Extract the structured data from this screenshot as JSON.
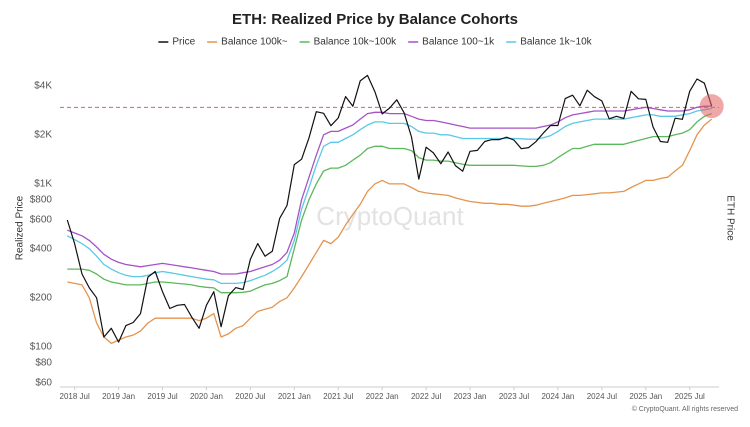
{
  "chart_data": {
    "type": "line",
    "title": "ETH: Realized Price by Balance Cohorts",
    "y_label": "Realized Price",
    "y2_label": "ETH Price",
    "watermark": "CryptoQuant",
    "footer": "© CryptoQuant. All rights reserved",
    "log_scale": true,
    "grid": false,
    "legend": "top",
    "xlim": [
      "2018-05",
      "2025-11"
    ],
    "ylim": [
      60,
      5000
    ],
    "xticks": [
      {
        "value": "2018-07",
        "label": "2018 Jul"
      },
      {
        "value": "2019-01",
        "label": "2019 Jan"
      },
      {
        "value": "2019-07",
        "label": "2019 Jul"
      },
      {
        "value": "2020-01",
        "label": "2020 Jan"
      },
      {
        "value": "2020-07",
        "label": "2020 Jul"
      },
      {
        "value": "2021-01",
        "label": "2021 Jan"
      },
      {
        "value": "2021-07",
        "label": "2021 Jul"
      },
      {
        "value": "2022-01",
        "label": "2022 Jan"
      },
      {
        "value": "2022-07",
        "label": "2022 Jul"
      },
      {
        "value": "2023-01",
        "label": "2023 Jan"
      },
      {
        "value": "2023-07",
        "label": "2023 Jul"
      },
      {
        "value": "2024-01",
        "label": "2024 Jan"
      },
      {
        "value": "2024-07",
        "label": "2024 Jul"
      },
      {
        "value": "2025-01",
        "label": "2025 Jan"
      },
      {
        "value": "2025-07",
        "label": "2025 Jul"
      }
    ],
    "yticks": [
      {
        "value": 60,
        "label": "$60"
      },
      {
        "value": 80,
        "label": "$80"
      },
      {
        "value": 100,
        "label": "$100"
      },
      {
        "value": 200,
        "label": "$200"
      },
      {
        "value": 400,
        "label": "$400"
      },
      {
        "value": 600,
        "label": "$600"
      },
      {
        "value": 800,
        "label": "$800"
      },
      {
        "value": 1000,
        "label": "$1K"
      },
      {
        "value": 2000,
        "label": "$2K"
      },
      {
        "value": 4000,
        "label": "$4K"
      }
    ],
    "reference_line": {
      "value": 2950,
      "color": "#e06060"
    },
    "highlight_last": true,
    "x": [
      "2018-06",
      "2018-07",
      "2018-08",
      "2018-09",
      "2018-10",
      "2018-11",
      "2018-12",
      "2019-01",
      "2019-02",
      "2019-03",
      "2019-04",
      "2019-05",
      "2019-06",
      "2019-07",
      "2019-08",
      "2019-09",
      "2019-10",
      "2019-11",
      "2019-12",
      "2020-01",
      "2020-02",
      "2020-03",
      "2020-04",
      "2020-05",
      "2020-06",
      "2020-07",
      "2020-08",
      "2020-09",
      "2020-10",
      "2020-11",
      "2020-12",
      "2021-01",
      "2021-02",
      "2021-03",
      "2021-04",
      "2021-05",
      "2021-06",
      "2021-07",
      "2021-08",
      "2021-09",
      "2021-10",
      "2021-11",
      "2021-12",
      "2022-01",
      "2022-02",
      "2022-03",
      "2022-04",
      "2022-05",
      "2022-06",
      "2022-07",
      "2022-08",
      "2022-09",
      "2022-10",
      "2022-11",
      "2022-12",
      "2023-01",
      "2023-02",
      "2023-03",
      "2023-04",
      "2023-05",
      "2023-06",
      "2023-07",
      "2023-08",
      "2023-09",
      "2023-10",
      "2023-11",
      "2023-12",
      "2024-01",
      "2024-02",
      "2024-03",
      "2024-04",
      "2024-05",
      "2024-06",
      "2024-07",
      "2024-08",
      "2024-09",
      "2024-10",
      "2024-11",
      "2024-12",
      "2025-01",
      "2025-02",
      "2025-03",
      "2025-04",
      "2025-05",
      "2025-06",
      "2025-07",
      "2025-08",
      "2025-09",
      "2025-10"
    ],
    "series": [
      {
        "name": "Price",
        "color": "#111111",
        "values": [
          600,
          430,
          280,
          230,
          200,
          115,
          130,
          107,
          135,
          141,
          160,
          268,
          290,
          218,
          172,
          180,
          182,
          152,
          130,
          180,
          218,
          133,
          206,
          231,
          225,
          345,
          430,
          360,
          386,
          615,
          737,
          1314,
          1418,
          1918,
          2773,
          2710,
          2275,
          2536,
          3433,
          3000,
          4288,
          4630,
          3680,
          2688,
          2920,
          3280,
          2730,
          1940,
          1070,
          1680,
          1550,
          1330,
          1570,
          1295,
          1196,
          1585,
          1605,
          1820,
          1870,
          1870,
          1934,
          1856,
          1645,
          1671,
          1815,
          2050,
          2282,
          2283,
          3340,
          3500,
          3015,
          3760,
          3430,
          3230,
          2510,
          2600,
          2520,
          3700,
          3330,
          3300,
          2230,
          1820,
          1800,
          2530,
          2490,
          3700,
          4400,
          4150,
          3000
        ]
      },
      {
        "name": "Balance 100k~",
        "color": "#e3954f",
        "values": [
          250,
          245,
          240,
          200,
          140,
          115,
          105,
          110,
          115,
          118,
          125,
          140,
          150,
          150,
          150,
          150,
          150,
          150,
          145,
          150,
          160,
          115,
          120,
          130,
          135,
          150,
          165,
          170,
          175,
          190,
          200,
          230,
          270,
          320,
          380,
          450,
          430,
          470,
          560,
          650,
          750,
          900,
          1000,
          1050,
          1000,
          1000,
          1000,
          950,
          900,
          880,
          870,
          860,
          850,
          820,
          800,
          780,
          770,
          760,
          760,
          750,
          750,
          740,
          730,
          730,
          740,
          760,
          780,
          800,
          820,
          850,
          850,
          860,
          870,
          880,
          880,
          890,
          900,
          950,
          1000,
          1050,
          1050,
          1080,
          1100,
          1200,
          1300,
          1600,
          2000,
          2300,
          2500
        ]
      },
      {
        "name": "Balance 10k~100k",
        "color": "#5cb85c",
        "values": [
          300,
          300,
          300,
          295,
          280,
          260,
          250,
          245,
          240,
          240,
          240,
          245,
          250,
          250,
          248,
          245,
          243,
          240,
          235,
          232,
          230,
          215,
          215,
          215,
          216,
          220,
          230,
          240,
          245,
          255,
          270,
          400,
          600,
          800,
          1000,
          1200,
          1250,
          1250,
          1300,
          1400,
          1500,
          1650,
          1700,
          1700,
          1650,
          1650,
          1650,
          1600,
          1450,
          1400,
          1400,
          1380,
          1380,
          1350,
          1320,
          1300,
          1300,
          1300,
          1300,
          1300,
          1300,
          1300,
          1290,
          1280,
          1280,
          1300,
          1350,
          1450,
          1550,
          1650,
          1650,
          1700,
          1750,
          1750,
          1750,
          1750,
          1750,
          1800,
          1850,
          1900,
          1950,
          1950,
          1950,
          2000,
          2050,
          2150,
          2400,
          2600,
          2700
        ]
      },
      {
        "name": "Balance 100~1k",
        "color": "#a653c6",
        "values": [
          520,
          500,
          480,
          450,
          410,
          370,
          345,
          330,
          320,
          315,
          310,
          315,
          320,
          325,
          320,
          315,
          310,
          305,
          300,
          295,
          290,
          280,
          280,
          280,
          285,
          290,
          300,
          310,
          320,
          340,
          380,
          500,
          800,
          1100,
          1500,
          2000,
          2100,
          2100,
          2200,
          2300,
          2500,
          2700,
          2750,
          2750,
          2700,
          2700,
          2700,
          2600,
          2500,
          2450,
          2450,
          2400,
          2350,
          2300,
          2250,
          2200,
          2200,
          2200,
          2200,
          2200,
          2200,
          2200,
          2200,
          2200,
          2200,
          2250,
          2300,
          2400,
          2550,
          2650,
          2700,
          2750,
          2800,
          2800,
          2800,
          2800,
          2800,
          2850,
          2900,
          2950,
          2900,
          2850,
          2800,
          2800,
          2800,
          2850,
          2950,
          3000,
          3000
        ]
      },
      {
        "name": "Balance 1k~10k",
        "color": "#5ac8e6",
        "values": [
          480,
          455,
          430,
          400,
          360,
          320,
          300,
          285,
          275,
          270,
          270,
          275,
          285,
          290,
          285,
          280,
          275,
          270,
          265,
          260,
          258,
          245,
          245,
          245,
          248,
          255,
          265,
          275,
          290,
          310,
          340,
          450,
          700,
          950,
          1300,
          1700,
          1800,
          1800,
          1900,
          2000,
          2150,
          2300,
          2400,
          2400,
          2350,
          2350,
          2350,
          2250,
          2100,
          2050,
          2050,
          2000,
          2000,
          1950,
          1900,
          1900,
          1900,
          1900,
          1900,
          1900,
          1900,
          1900,
          1890,
          1880,
          1880,
          1920,
          1980,
          2100,
          2250,
          2350,
          2400,
          2450,
          2500,
          2500,
          2500,
          2500,
          2500,
          2550,
          2600,
          2650,
          2650,
          2600,
          2600,
          2600,
          2650,
          2700,
          2800,
          2850,
          2900
        ]
      }
    ]
  }
}
